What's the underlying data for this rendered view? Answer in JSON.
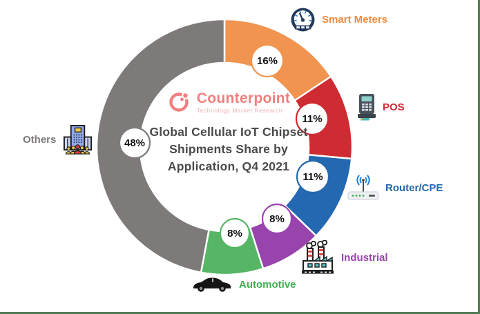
{
  "page": {
    "background": "#FFFFFF",
    "edge_border_color": "#527D57"
  },
  "branding": {
    "name": "Counterpoint",
    "tagline": "Technology Market Research",
    "brand_color": "#F27E7E",
    "tagline_color": "#EFB2B2"
  },
  "chart_data": {
    "type": "pie",
    "variant": "donut",
    "title": "Global Cellular IoT Chipset Shipments Share by Application, Q4 2021",
    "title_lines": [
      "Global Cellular IoT Chipset",
      "Shipments Share by",
      "Application, Q4 2021"
    ],
    "title_color": "#4A4A4A",
    "unit": "percent",
    "start_angle_deg": 0,
    "direction": "clockwise",
    "legend_position": "around-chart",
    "slices": [
      {
        "label": "Smart Meters",
        "value": 16,
        "pct_label": "16%",
        "color": "#F0944F",
        "label_color": "#EF8B3F",
        "icon": "smart-meter-gauge"
      },
      {
        "label": "POS",
        "value": 11,
        "pct_label": "11%",
        "color": "#CF2B33",
        "label_color": "#CF2B33",
        "icon": "pos-terminal"
      },
      {
        "label": "Router/CPE",
        "value": 11,
        "pct_label": "11%",
        "color": "#2368B0",
        "label_color": "#2368B0",
        "icon": "router"
      },
      {
        "label": "Industrial",
        "value": 8,
        "pct_label": "8%",
        "color": "#9943AC",
        "label_color": "#9943AC",
        "icon": "factory"
      },
      {
        "label": "Automotive",
        "value": 8,
        "pct_label": "8%",
        "color": "#56B666",
        "label_color": "#3FAE52",
        "icon": "car"
      },
      {
        "label": "Others",
        "value": 48,
        "pct_label": "48%",
        "color": "#7E7A7A",
        "label_color": "#7E7A7A",
        "icon": "building"
      }
    ],
    "bubble_text_color": "#111111",
    "bubble_fill": "#FFFFFF"
  }
}
